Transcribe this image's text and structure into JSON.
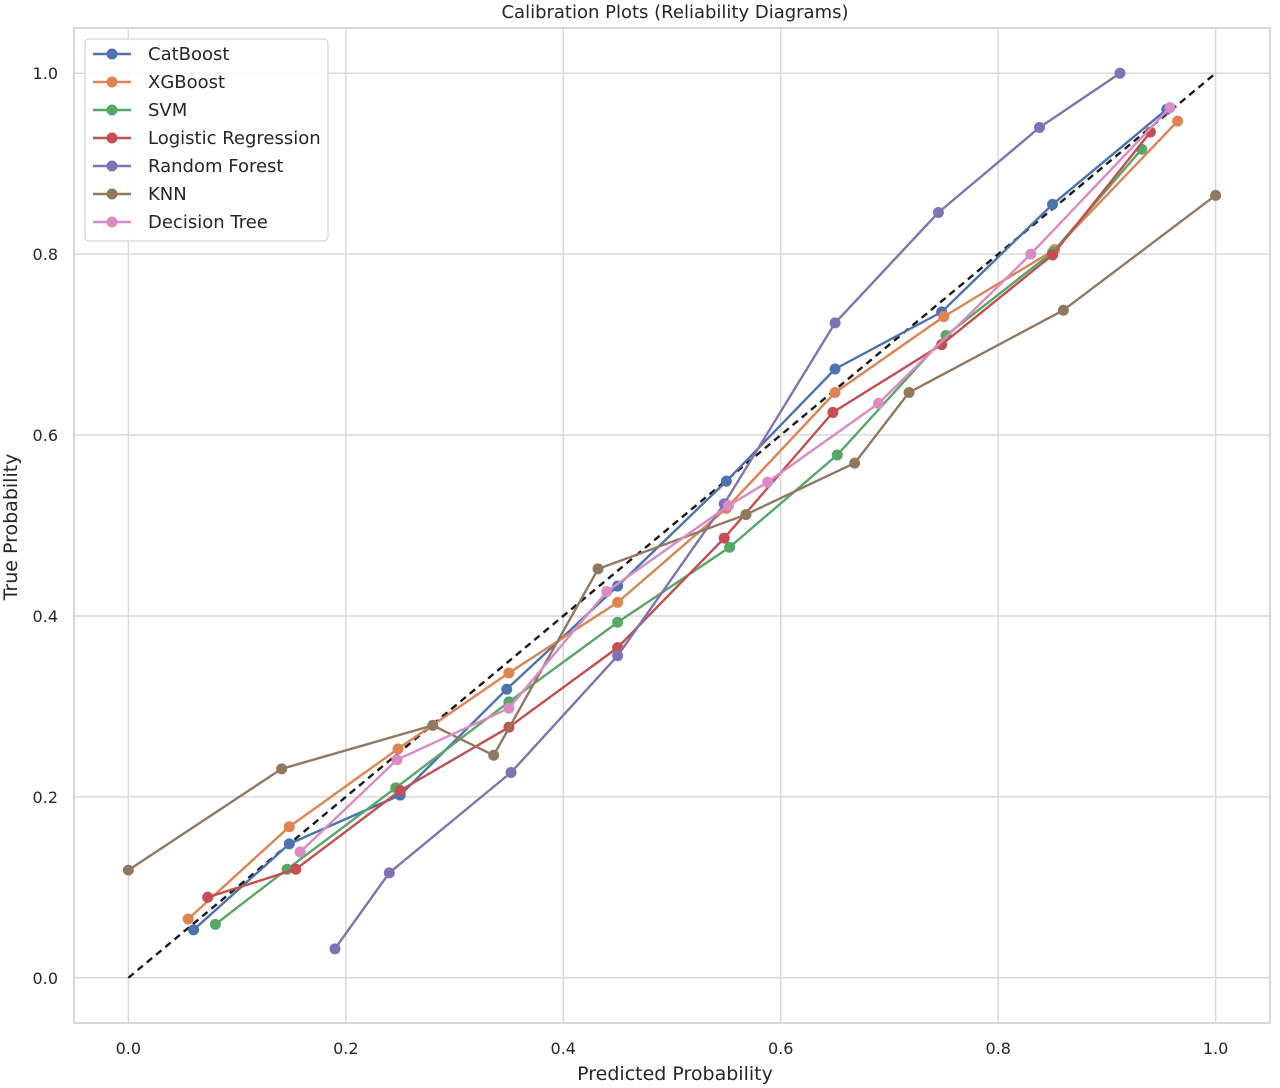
{
  "chart_data": {
    "type": "line",
    "title": "Calibration Plots (Reliability Diagrams)",
    "xlabel": "Predicted Probability",
    "ylabel": "True Probability",
    "xlim": [
      -0.05,
      1.05
    ],
    "ylim": [
      -0.05,
      1.05
    ],
    "xticks": [
      "0.0",
      "0.2",
      "0.4",
      "0.6",
      "0.8",
      "1.0"
    ],
    "yticks": [
      "0.0",
      "0.2",
      "0.4",
      "0.6",
      "0.8",
      "1.0"
    ],
    "grid": true,
    "legend_position": "top-left",
    "reference_line": {
      "style": "dashed",
      "color": "#1a1a1a",
      "x": [
        0,
        1
      ],
      "y": [
        0,
        1
      ]
    },
    "series": [
      {
        "name": "CatBoost",
        "color": "#4c72b0",
        "x": [
          0.06,
          0.148,
          0.25,
          0.348,
          0.45,
          0.55,
          0.65,
          0.748,
          0.85,
          0.955
        ],
        "y": [
          0.053,
          0.148,
          0.202,
          0.319,
          0.433,
          0.549,
          0.673,
          0.736,
          0.855,
          0.96
        ]
      },
      {
        "name": "XGBoost",
        "color": "#dd8452",
        "x": [
          0.055,
          0.148,
          0.248,
          0.35,
          0.45,
          0.55,
          0.65,
          0.75,
          0.852,
          0.965
        ],
        "y": [
          0.065,
          0.167,
          0.253,
          0.337,
          0.415,
          0.519,
          0.647,
          0.731,
          0.805,
          0.947
        ]
      },
      {
        "name": "SVM",
        "color": "#55a868",
        "x": [
          0.08,
          0.146,
          0.246,
          0.35,
          0.45,
          0.553,
          0.652,
          0.752,
          0.85,
          0.932
        ],
        "y": [
          0.059,
          0.12,
          0.21,
          0.305,
          0.393,
          0.476,
          0.578,
          0.71,
          0.802,
          0.916
        ]
      },
      {
        "name": "Logistic Regression",
        "color": "#c44e52",
        "x": [
          0.073,
          0.154,
          0.25,
          0.35,
          0.45,
          0.548,
          0.648,
          0.748,
          0.85,
          0.94
        ],
        "y": [
          0.089,
          0.12,
          0.207,
          0.277,
          0.365,
          0.486,
          0.625,
          0.7,
          0.799,
          0.935
        ]
      },
      {
        "name": "Random Forest",
        "color": "#8172b3",
        "x": [
          0.19,
          0.24,
          0.352,
          0.45,
          0.548,
          0.65,
          0.745,
          0.838,
          0.912
        ],
        "y": [
          0.032,
          0.116,
          0.227,
          0.356,
          0.524,
          0.724,
          0.846,
          0.94,
          1.0
        ]
      },
      {
        "name": "KNN",
        "color": "#937860",
        "x": [
          0.0,
          0.141,
          0.28,
          0.336,
          0.432,
          0.568,
          0.668,
          0.718,
          0.86,
          1.0
        ],
        "y": [
          0.119,
          0.231,
          0.279,
          0.246,
          0.452,
          0.512,
          0.569,
          0.647,
          0.738,
          0.865
        ]
      },
      {
        "name": "Decision Tree",
        "color": "#da8bc3",
        "x": [
          0.158,
          0.247,
          0.35,
          0.44,
          0.552,
          0.588,
          0.69,
          0.83,
          0.958
        ],
        "y": [
          0.139,
          0.241,
          0.298,
          0.427,
          0.522,
          0.548,
          0.635,
          0.8,
          0.962
        ]
      }
    ]
  }
}
